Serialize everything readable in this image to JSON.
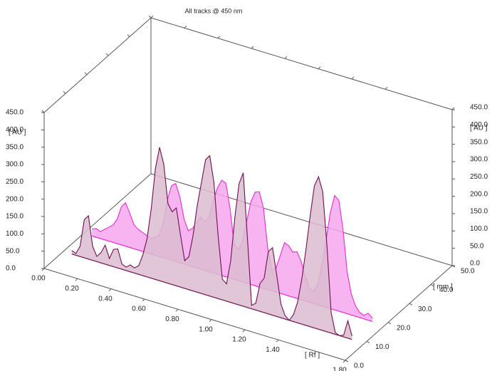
{
  "chart_data": {
    "type": "area3d",
    "title": "All tracks @ 450 nm",
    "y_label": "[ AU ]",
    "x_label": "[ Rf ]",
    "z_label": "[ mm ]",
    "xlim": [
      0,
      1.8
    ],
    "xticks": [
      {
        "value": 0,
        "label": "0.00"
      },
      {
        "value": 0.2,
        "label": "0.20"
      },
      {
        "value": 0.4,
        "label": "0.40"
      },
      {
        "value": 0.6,
        "label": "0.60"
      },
      {
        "value": 0.8,
        "label": "0.80"
      },
      {
        "value": 1,
        "label": "1.00"
      },
      {
        "value": 1.2,
        "label": "1.20"
      },
      {
        "value": 1.4,
        "label": "1.40"
      },
      {
        "value": 1.8,
        "label": "1.80"
      }
    ],
    "ylim": [
      0,
      450
    ],
    "yticks": [
      {
        "value": 0,
        "label": "0.0"
      },
      {
        "value": 50,
        "label": "50.0"
      },
      {
        "value": 100,
        "label": "100.0"
      },
      {
        "value": 150,
        "label": "150.0"
      },
      {
        "value": 200,
        "label": "200.0"
      },
      {
        "value": 250,
        "label": "250.0"
      },
      {
        "value": 300,
        "label": "300.0"
      },
      {
        "value": 350,
        "label": "350.0"
      },
      {
        "value": 400,
        "label": "400.0"
      },
      {
        "value": 450,
        "label": "450.0"
      }
    ],
    "zlim": [
      0,
      50
    ],
    "zticks": [
      {
        "value": 0,
        "label": "0.0"
      },
      {
        "value": 10,
        "label": "10.0"
      },
      {
        "value": 20,
        "label": "20.0"
      },
      {
        "value": 30,
        "label": "30.0"
      },
      {
        "value": 40,
        "label": "40.0"
      },
      {
        "value": 50,
        "label": "50.0"
      }
    ],
    "x": [
      0.05,
      0.075,
      0.1,
      0.125,
      0.15,
      0.175,
      0.2,
      0.225,
      0.25,
      0.275,
      0.3,
      0.325,
      0.35,
      0.375,
      0.4,
      0.425,
      0.45,
      0.475,
      0.5,
      0.525,
      0.55,
      0.575,
      0.6,
      0.625,
      0.65,
      0.675,
      0.7,
      0.725,
      0.75,
      0.775,
      0.8,
      0.825,
      0.85,
      0.875,
      0.9,
      0.925,
      0.95,
      0.975,
      1.0,
      1.025,
      1.05,
      1.075,
      1.1,
      1.125,
      1.15,
      1.175,
      1.2,
      1.225,
      1.25,
      1.275,
      1.3,
      1.325,
      1.35,
      1.375,
      1.4,
      1.425,
      1.45,
      1.475,
      1.5,
      1.525,
      1.55,
      1.575,
      1.6,
      1.625,
      1.65,
      1.675,
      1.7,
      1.725
    ],
    "series": [
      {
        "color": "#e22fcf",
        "fill": "#f7a6ef",
        "values": [
          20,
          25,
          20,
          30,
          40,
          50,
          70,
          110,
          125,
          100,
          70,
          60,
          55,
          50,
          45,
          50,
          60,
          100,
          170,
          215,
          225,
          190,
          130,
          100,
          110,
          130,
          150,
          140,
          160,
          210,
          250,
          275,
          270,
          200,
          100,
          90,
          120,
          180,
          240,
          270,
          275,
          230,
          120,
          60,
          70,
          110,
          150,
          145,
          130,
          135,
          110,
          70,
          40,
          35,
          60,
          120,
          200,
          280,
          330,
          320,
          240,
          120,
          60,
          30,
          15,
          10,
          20,
          10
        ]
      },
      {
        "color": "#6e1050",
        "fill": "#dcbcd0",
        "values": [
          10,
          5,
          30,
          110,
          125,
          40,
          15,
          30,
          55,
          20,
          50,
          55,
          15,
          10,
          20,
          15,
          25,
          60,
          110,
          200,
          320,
          385,
          340,
          230,
          210,
          225,
          150,
          80,
          95,
          160,
          250,
          320,
          390,
          405,
          330,
          180,
          60,
          50,
          120,
          250,
          350,
          385,
          200,
          10,
          20,
          80,
          100,
          180,
          195,
          120,
          40,
          10,
          0,
          20,
          60,
          130,
          220,
          320,
          410,
          440,
          400,
          250,
          60,
          5,
          0,
          5,
          50,
          10
        ]
      }
    ]
  }
}
